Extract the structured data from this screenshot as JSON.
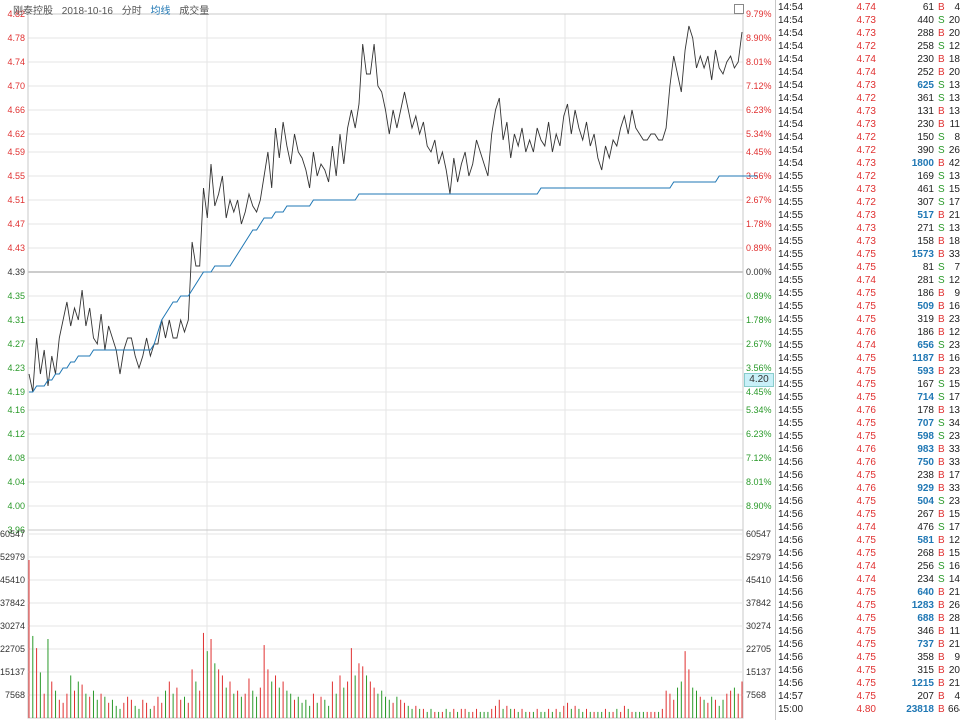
{
  "header": {
    "stock_name": "刚泰控股",
    "date": "2018-10-16",
    "mode": "分时",
    "avg_label": "均线",
    "vol_label": "成交量"
  },
  "current_price_tag": "4.20",
  "colors": {
    "up": "#e03030",
    "down": "#2a9a2a",
    "avg": "#1f77b4",
    "price": "#333333",
    "neutral": "#333333"
  },
  "chart_data": [
    {
      "type": "line",
      "x": "trading minutes 09:30-15:00",
      "ylim": [
        3.96,
        4.82
      ],
      "prev_close": 4.39,
      "price_ticks": [
        "4.82",
        "4.78",
        "4.74",
        "4.70",
        "4.66",
        "4.62",
        "4.59",
        "4.55",
        "4.51",
        "4.47",
        "4.43",
        "4.39",
        "4.35",
        "4.31",
        "4.27",
        "4.23",
        "4.19",
        "4.16",
        "4.12",
        "4.08",
        "4.04",
        "4.00",
        "3.96"
      ],
      "pct_ticks": [
        "9.79%",
        "8.90%",
        "8.01%",
        "7.12%",
        "6.23%",
        "5.34%",
        "4.45%",
        "3.56%",
        "2.67%",
        "1.78%",
        "0.89%",
        "0.00%",
        "0.89%",
        "1.78%",
        "2.67%",
        "3.56%",
        "4.45%",
        "5.34%",
        "6.23%",
        "7.12%",
        "8.01%",
        "8.90%",
        ""
      ],
      "series": [
        {
          "name": "price",
          "values": [
            4.22,
            4.19,
            4.28,
            4.22,
            4.26,
            4.2,
            4.25,
            4.22,
            4.28,
            4.31,
            4.34,
            4.3,
            4.33,
            4.31,
            4.36,
            4.3,
            4.33,
            4.28,
            4.27,
            4.32,
            4.26,
            4.3,
            4.28,
            4.26,
            4.22,
            4.26,
            4.28,
            4.28,
            4.25,
            4.23,
            4.25,
            4.28,
            4.25,
            4.27,
            4.27,
            4.31,
            4.28,
            4.31,
            4.28,
            4.28,
            4.31,
            4.29,
            4.31,
            4.44,
            4.4,
            4.4,
            4.53,
            4.48,
            4.57,
            4.5,
            4.52,
            4.55,
            4.48,
            4.51,
            4.49,
            4.51,
            4.47,
            4.49,
            4.52,
            4.5,
            4.49,
            4.51,
            4.55,
            4.59,
            4.53,
            4.63,
            4.58,
            4.64,
            4.6,
            4.57,
            4.62,
            4.59,
            4.58,
            4.56,
            4.53,
            4.59,
            4.55,
            4.57,
            4.56,
            4.54,
            4.6,
            4.55,
            4.62,
            4.57,
            4.63,
            4.66,
            4.63,
            4.67,
            4.77,
            4.72,
            4.72,
            4.77,
            4.7,
            4.69,
            4.66,
            4.62,
            4.66,
            4.63,
            4.66,
            4.69,
            4.66,
            4.63,
            4.65,
            4.62,
            4.64,
            4.6,
            4.59,
            4.61,
            4.57,
            4.59,
            4.56,
            4.52,
            4.58,
            4.54,
            4.57,
            4.59,
            4.55,
            4.57,
            4.61,
            4.59,
            4.57,
            4.55,
            4.62,
            4.66,
            4.68,
            4.61,
            4.64,
            4.58,
            4.62,
            4.6,
            4.63,
            4.59,
            4.61,
            4.59,
            4.63,
            4.61,
            4.6,
            4.64,
            4.59,
            4.62,
            4.6,
            4.65,
            4.67,
            4.62,
            4.66,
            4.63,
            4.61,
            4.64,
            4.6,
            4.62,
            4.58,
            4.56,
            4.6,
            4.58,
            4.61,
            4.6,
            4.63,
            4.65,
            4.62,
            4.66,
            4.63,
            4.62,
            4.61,
            4.61,
            4.62,
            4.62,
            4.61,
            4.61,
            4.63,
            4.7,
            4.75,
            4.72,
            4.69,
            4.76,
            4.8,
            4.78,
            4.73,
            4.75,
            4.73,
            4.75,
            4.71,
            4.76,
            4.73,
            4.72,
            4.74,
            4.75,
            4.73,
            4.74,
            4.79
          ]
        },
        {
          "name": "avg",
          "values": [
            4.19,
            4.19,
            4.2,
            4.2,
            4.2,
            4.21,
            4.21,
            4.22,
            4.22,
            4.23,
            4.23,
            4.24,
            4.24,
            4.25,
            4.25,
            4.25,
            4.25,
            4.26,
            4.26,
            4.26,
            4.26,
            4.26,
            4.26,
            4.26,
            4.26,
            4.26,
            4.26,
            4.26,
            4.26,
            4.26,
            4.26,
            4.26,
            4.26,
            4.27,
            4.29,
            4.31,
            4.32,
            4.33,
            4.34,
            4.34,
            4.35,
            4.35,
            4.35,
            4.36,
            4.37,
            4.38,
            4.39,
            4.39,
            4.39,
            4.4,
            4.4,
            4.4,
            4.4,
            4.4,
            4.41,
            4.42,
            4.43,
            4.44,
            4.45,
            4.46,
            4.46,
            4.47,
            4.48,
            4.48,
            4.48,
            4.49,
            4.49,
            4.49,
            4.5,
            4.5,
            4.5,
            4.5,
            4.5,
            4.5,
            4.5,
            4.51,
            4.51,
            4.51,
            4.51,
            4.51,
            4.51,
            4.51,
            4.51,
            4.51,
            4.51,
            4.51,
            4.51,
            4.52,
            4.52,
            4.52,
            4.52,
            4.52,
            4.52,
            4.52,
            4.52,
            4.52,
            4.52,
            4.52,
            4.52,
            4.52,
            4.52,
            4.52,
            4.52,
            4.52,
            4.52,
            4.52,
            4.52,
            4.52,
            4.52,
            4.52,
            4.52,
            4.52,
            4.52,
            4.52,
            4.52,
            4.52,
            4.52,
            4.52,
            4.52,
            4.52,
            4.52,
            4.52,
            4.52,
            4.52,
            4.52,
            4.52,
            4.52,
            4.52,
            4.52,
            4.52,
            4.52,
            4.52,
            4.52,
            4.52,
            4.52,
            4.53,
            4.53,
            4.53,
            4.53,
            4.53,
            4.53,
            4.53,
            4.53,
            4.53,
            4.53,
            4.53,
            4.53,
            4.53,
            4.53,
            4.53,
            4.53,
            4.53,
            4.53,
            4.53,
            4.53,
            4.53,
            4.53,
            4.53,
            4.53,
            4.53,
            4.53,
            4.53,
            4.53,
            4.53,
            4.53,
            4.53,
            4.53,
            4.53,
            4.53,
            4.53,
            4.54,
            4.54,
            4.54,
            4.54,
            4.54,
            4.54,
            4.54,
            4.54,
            4.54,
            4.54,
            4.54,
            4.54,
            4.55,
            4.55,
            4.55,
            4.55,
            4.55,
            4.55,
            4.55,
            4.55,
            4.55,
            4.55,
            4.55
          ]
        }
      ]
    },
    {
      "type": "bar",
      "ylim": [
        0,
        60547
      ],
      "vol_ticks": [
        "60547",
        "52979",
        "45410",
        "37842",
        "30274",
        "22705",
        "15137",
        "7568"
      ],
      "values": [
        52000,
        27000,
        23000,
        15000,
        8000,
        26000,
        12000,
        9000,
        6000,
        5000,
        8000,
        14000,
        9000,
        12000,
        11000,
        8000,
        7000,
        9000,
        6000,
        8000,
        7000,
        5000,
        6000,
        4000,
        3000,
        5000,
        7000,
        6000,
        4000,
        3000,
        6000,
        5000,
        3000,
        4000,
        7000,
        5000,
        9000,
        12000,
        8000,
        10000,
        6000,
        7000,
        5000,
        16000,
        12000,
        9000,
        28000,
        22000,
        26000,
        18000,
        16000,
        14000,
        10000,
        12000,
        8000,
        9000,
        7000,
        8000,
        13000,
        9000,
        7000,
        10000,
        24000,
        16000,
        12000,
        14000,
        10000,
        12000,
        9000,
        8000,
        6000,
        7000,
        5000,
        6000,
        4000,
        8000,
        5000,
        7000,
        6000,
        4000,
        12000,
        8000,
        14000,
        10000,
        12000,
        23000,
        14000,
        18000,
        17000,
        14000,
        12000,
        10000,
        8000,
        9000,
        7000,
        6000,
        5000,
        7000,
        6000,
        5000,
        4000,
        3000,
        4000,
        3000,
        3000,
        2000,
        3000,
        2000,
        2000,
        2000,
        3000,
        2000,
        3000,
        2000,
        3000,
        3000,
        2000,
        2000,
        3000,
        2000,
        2000,
        2000,
        3000,
        4000,
        6000,
        3000,
        4000,
        3000,
        3000,
        2000,
        3000,
        2000,
        2000,
        2000,
        3000,
        2000,
        2000,
        3000,
        2000,
        3000,
        2000,
        4000,
        5000,
        3000,
        4000,
        3000,
        2000,
        3000,
        2000,
        2000,
        2000,
        2000,
        3000,
        2000,
        2000,
        3000,
        2000,
        4000,
        3000,
        2000,
        2000,
        2000,
        2000,
        2000,
        2000,
        2000,
        2000,
        3000,
        9000,
        8000,
        6000,
        10000,
        12000,
        22000,
        16000,
        10000,
        9000,
        7000,
        6000,
        5000,
        7000,
        6000,
        4000,
        6000,
        8000,
        9000,
        10000,
        8000,
        12000
      ]
    }
  ],
  "ticks": [
    {
      "time": "14:54",
      "price": "4.74",
      "vol": "61",
      "side": "B",
      "cnt": "4"
    },
    {
      "time": "14:54",
      "price": "4.73",
      "vol": "440",
      "side": "S",
      "cnt": "20"
    },
    {
      "time": "14:54",
      "price": "4.73",
      "vol": "288",
      "side": "B",
      "cnt": "20"
    },
    {
      "time": "14:54",
      "price": "4.72",
      "vol": "258",
      "side": "S",
      "cnt": "12"
    },
    {
      "time": "14:54",
      "price": "4.74",
      "vol": "230",
      "side": "B",
      "cnt": "18"
    },
    {
      "time": "14:54",
      "price": "4.74",
      "vol": "252",
      "side": "B",
      "cnt": "20"
    },
    {
      "time": "14:54",
      "price": "4.73",
      "vol": "625",
      "side": "S",
      "cnt": "13"
    },
    {
      "time": "14:54",
      "price": "4.72",
      "vol": "361",
      "side": "S",
      "cnt": "13"
    },
    {
      "time": "14:54",
      "price": "4.73",
      "vol": "131",
      "side": "B",
      "cnt": "13"
    },
    {
      "time": "14:54",
      "price": "4.73",
      "vol": "230",
      "side": "B",
      "cnt": "11"
    },
    {
      "time": "14:54",
      "price": "4.72",
      "vol": "150",
      "side": "S",
      "cnt": "8"
    },
    {
      "time": "14:54",
      "price": "4.72",
      "vol": "390",
      "side": "S",
      "cnt": "26"
    },
    {
      "time": "14:54",
      "price": "4.73",
      "vol": "1800",
      "side": "B",
      "cnt": "42"
    },
    {
      "time": "14:55",
      "price": "4.72",
      "vol": "169",
      "side": "S",
      "cnt": "13"
    },
    {
      "time": "14:55",
      "price": "4.73",
      "vol": "461",
      "side": "S",
      "cnt": "15"
    },
    {
      "time": "14:55",
      "price": "4.72",
      "vol": "307",
      "side": "S",
      "cnt": "17"
    },
    {
      "time": "14:55",
      "price": "4.73",
      "vol": "517",
      "side": "B",
      "cnt": "21"
    },
    {
      "time": "14:55",
      "price": "4.73",
      "vol": "271",
      "side": "S",
      "cnt": "13"
    },
    {
      "time": "14:55",
      "price": "4.73",
      "vol": "158",
      "side": "B",
      "cnt": "18"
    },
    {
      "time": "14:55",
      "price": "4.75",
      "vol": "1573",
      "side": "B",
      "cnt": "33"
    },
    {
      "time": "14:55",
      "price": "4.75",
      "vol": "81",
      "side": "S",
      "cnt": "7"
    },
    {
      "time": "14:55",
      "price": "4.74",
      "vol": "281",
      "side": "S",
      "cnt": "12"
    },
    {
      "time": "14:55",
      "price": "4.75",
      "vol": "186",
      "side": "B",
      "cnt": "9"
    },
    {
      "time": "14:55",
      "price": "4.75",
      "vol": "509",
      "side": "B",
      "cnt": "16"
    },
    {
      "time": "14:55",
      "price": "4.75",
      "vol": "319",
      "side": "B",
      "cnt": "23"
    },
    {
      "time": "14:55",
      "price": "4.76",
      "vol": "186",
      "side": "B",
      "cnt": "12"
    },
    {
      "time": "14:55",
      "price": "4.74",
      "vol": "656",
      "side": "S",
      "cnt": "23"
    },
    {
      "time": "14:55",
      "price": "4.75",
      "vol": "1187",
      "side": "B",
      "cnt": "16"
    },
    {
      "time": "14:55",
      "price": "4.75",
      "vol": "593",
      "side": "B",
      "cnt": "23"
    },
    {
      "time": "14:55",
      "price": "4.75",
      "vol": "167",
      "side": "S",
      "cnt": "15"
    },
    {
      "time": "14:55",
      "price": "4.75",
      "vol": "714",
      "side": "S",
      "cnt": "17"
    },
    {
      "time": "14:55",
      "price": "4.76",
      "vol": "178",
      "side": "B",
      "cnt": "13"
    },
    {
      "time": "14:55",
      "price": "4.75",
      "vol": "707",
      "side": "S",
      "cnt": "34"
    },
    {
      "time": "14:55",
      "price": "4.75",
      "vol": "598",
      "side": "S",
      "cnt": "23"
    },
    {
      "time": "14:56",
      "price": "4.76",
      "vol": "983",
      "side": "B",
      "cnt": "33"
    },
    {
      "time": "14:56",
      "price": "4.76",
      "vol": "750",
      "side": "B",
      "cnt": "33"
    },
    {
      "time": "14:56",
      "price": "4.75",
      "vol": "238",
      "side": "B",
      "cnt": "17"
    },
    {
      "time": "14:56",
      "price": "4.76",
      "vol": "929",
      "side": "B",
      "cnt": "33"
    },
    {
      "time": "14:56",
      "price": "4.75",
      "vol": "504",
      "side": "S",
      "cnt": "23"
    },
    {
      "time": "14:56",
      "price": "4.75",
      "vol": "267",
      "side": "B",
      "cnt": "15"
    },
    {
      "time": "14:56",
      "price": "4.74",
      "vol": "476",
      "side": "S",
      "cnt": "17"
    },
    {
      "time": "14:56",
      "price": "4.75",
      "vol": "581",
      "side": "B",
      "cnt": "12"
    },
    {
      "time": "14:56",
      "price": "4.75",
      "vol": "268",
      "side": "B",
      "cnt": "15"
    },
    {
      "time": "14:56",
      "price": "4.74",
      "vol": "256",
      "side": "S",
      "cnt": "16"
    },
    {
      "time": "14:56",
      "price": "4.74",
      "vol": "234",
      "side": "S",
      "cnt": "14"
    },
    {
      "time": "14:56",
      "price": "4.75",
      "vol": "640",
      "side": "B",
      "cnt": "21"
    },
    {
      "time": "14:56",
      "price": "4.75",
      "vol": "1283",
      "side": "B",
      "cnt": "26"
    },
    {
      "time": "14:56",
      "price": "4.75",
      "vol": "688",
      "side": "B",
      "cnt": "28"
    },
    {
      "time": "14:56",
      "price": "4.75",
      "vol": "346",
      "side": "B",
      "cnt": "11"
    },
    {
      "time": "14:56",
      "price": "4.75",
      "vol": "737",
      "side": "B",
      "cnt": "21"
    },
    {
      "time": "14:56",
      "price": "4.75",
      "vol": "358",
      "side": "B",
      "cnt": "9"
    },
    {
      "time": "14:56",
      "price": "4.75",
      "vol": "315",
      "side": "B",
      "cnt": "20"
    },
    {
      "time": "14:56",
      "price": "4.75",
      "vol": "1215",
      "side": "B",
      "cnt": "21"
    },
    {
      "time": "14:57",
      "price": "4.75",
      "vol": "207",
      "side": "B",
      "cnt": "4"
    },
    {
      "time": "15:00",
      "price": "4.80",
      "vol": "23818",
      "side": "B",
      "cnt": "664"
    }
  ]
}
